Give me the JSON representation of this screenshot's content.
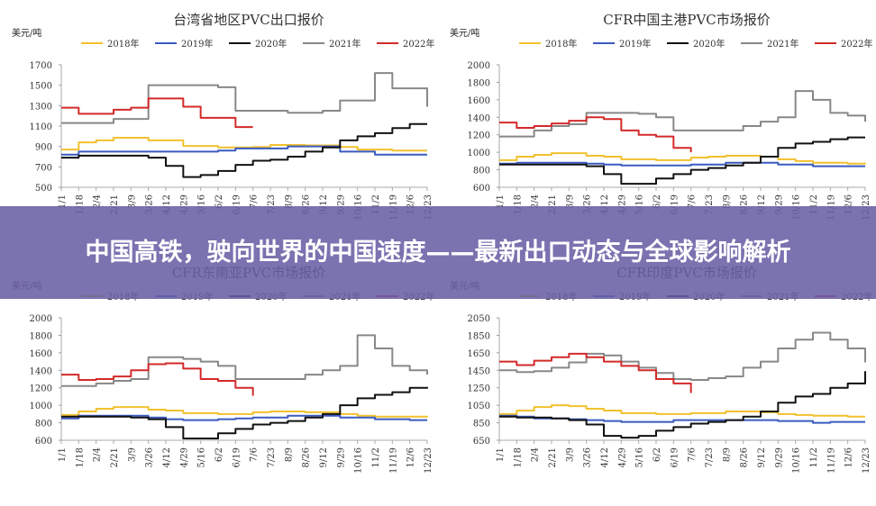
{
  "banner": {
    "title": "中国高铁，驶向世界的中国速度——最新出口动态与全球影响解析"
  },
  "colors": {
    "2018": "#f2c12e",
    "2019": "#3a5bc0",
    "2020": "#111111",
    "2021": "#888888",
    "2022": "#d42a2a",
    "banner": "#695fa5"
  },
  "chart_data": [
    {
      "type": "line",
      "title": "台湾省地区PVC出口报价",
      "unit": "美元/吨",
      "x_ticks": [
        "1/1",
        "1/18",
        "2/4",
        "2/21",
        "3/9",
        "3/26",
        "4/12",
        "4/29",
        "5/16",
        "6/2",
        "6/19",
        "7/6",
        "7/23",
        "8/9",
        "8/26",
        "9/12",
        "9/29",
        "10/16",
        "11/2",
        "11/19",
        "12/6",
        "12/23"
      ],
      "y_ticks": [
        500,
        700,
        900,
        1100,
        1300,
        1500,
        1700
      ],
      "ylim": [
        500,
        1700
      ],
      "legend": [
        "2018年",
        "2019年",
        "2020年",
        "2021年",
        "2022年"
      ],
      "series": [
        {
          "name": "2018年",
          "values": [
            870,
            940,
            960,
            985,
            985,
            960,
            960,
            905,
            905,
            890,
            890,
            895,
            915,
            915,
            910,
            910,
            895,
            870,
            870,
            860,
            860,
            860
          ]
        },
        {
          "name": "2019年",
          "values": [
            820,
            850,
            850,
            850,
            850,
            850,
            850,
            850,
            850,
            860,
            880,
            880,
            880,
            900,
            900,
            900,
            850,
            850,
            820,
            820,
            820,
            820
          ]
        },
        {
          "name": "2020年",
          "values": [
            790,
            810,
            810,
            810,
            810,
            790,
            710,
            600,
            620,
            660,
            720,
            760,
            770,
            800,
            850,
            890,
            960,
            1000,
            1030,
            1080,
            1120,
            1120
          ]
        },
        {
          "name": "2021年",
          "values": [
            1130,
            1130,
            1130,
            1170,
            1170,
            1500,
            1500,
            1500,
            1500,
            1480,
            1250,
            1250,
            1250,
            1230,
            1230,
            1250,
            1350,
            1350,
            1620,
            1470,
            1470,
            1290
          ]
        },
        {
          "name": "2022年",
          "values": [
            1280,
            1220,
            1220,
            1260,
            1280,
            1370,
            1370,
            1290,
            1180,
            1180,
            1090,
            1090
          ]
        }
      ]
    },
    {
      "type": "line",
      "title": "CFR中国主港PVC市场报价",
      "unit": "美元/吨",
      "x_ticks": [
        "1/1",
        "1/18",
        "2/4",
        "2/21",
        "3/9",
        "3/26",
        "4/12",
        "4/29",
        "5/16",
        "6/2",
        "6/19",
        "7/6",
        "7/23",
        "8/9",
        "8/26",
        "9/12",
        "9/29",
        "10/16",
        "11/2",
        "11/19",
        "12/6",
        "12/23"
      ],
      "y_ticks": [
        600,
        800,
        1000,
        1200,
        1400,
        1600,
        1800,
        2000
      ],
      "ylim": [
        600,
        2000
      ],
      "legend": [
        "2018年",
        "2019年",
        "2020年",
        "2021年",
        "2022年"
      ],
      "series": [
        {
          "name": "2018年",
          "values": [
            910,
            950,
            970,
            990,
            990,
            960,
            950,
            920,
            920,
            910,
            910,
            940,
            950,
            960,
            960,
            950,
            920,
            900,
            880,
            880,
            870,
            880
          ]
        },
        {
          "name": "2019年",
          "values": [
            870,
            880,
            880,
            880,
            880,
            870,
            860,
            850,
            850,
            850,
            850,
            860,
            860,
            880,
            880,
            880,
            860,
            860,
            840,
            840,
            840,
            840
          ]
        },
        {
          "name": "2020年",
          "values": [
            860,
            860,
            860,
            860,
            860,
            840,
            750,
            640,
            640,
            700,
            750,
            800,
            820,
            850,
            880,
            950,
            1050,
            1100,
            1120,
            1150,
            1170,
            1170
          ]
        },
        {
          "name": "2021年",
          "values": [
            1180,
            1180,
            1250,
            1300,
            1320,
            1450,
            1450,
            1450,
            1440,
            1400,
            1250,
            1250,
            1250,
            1250,
            1300,
            1350,
            1400,
            1700,
            1600,
            1450,
            1420,
            1350
          ]
        },
        {
          "name": "2022年",
          "values": [
            1340,
            1280,
            1300,
            1330,
            1360,
            1400,
            1380,
            1250,
            1200,
            1180,
            1050,
            1000
          ]
        }
      ]
    },
    {
      "type": "line",
      "title": "CFR东南亚PVC市场报价",
      "unit": "美元/吨",
      "x_ticks": [
        "1/1",
        "1/18",
        "2/4",
        "2/21",
        "3/9",
        "3/26",
        "4/12",
        "4/29",
        "5/16",
        "6/2",
        "6/19",
        "7/6",
        "7/23",
        "8/9",
        "8/26",
        "9/12",
        "9/29",
        "10/16",
        "11/2",
        "11/19",
        "12/6",
        "12/23"
      ],
      "y_ticks": [
        600,
        800,
        1000,
        1200,
        1400,
        1600,
        1800,
        2000
      ],
      "ylim": [
        600,
        2000
      ],
      "legend": [
        "2018年",
        "2019年",
        "2020年",
        "2021年",
        "2022年"
      ],
      "series": [
        {
          "name": "2018年",
          "values": [
            890,
            930,
            960,
            980,
            980,
            950,
            940,
            910,
            910,
            900,
            900,
            920,
            930,
            930,
            920,
            920,
            900,
            880,
            870,
            870,
            870,
            880
          ]
        },
        {
          "name": "2019年",
          "values": [
            850,
            880,
            880,
            880,
            880,
            860,
            840,
            830,
            830,
            840,
            850,
            860,
            860,
            880,
            880,
            880,
            860,
            860,
            840,
            840,
            830,
            830
          ]
        },
        {
          "name": "2020年",
          "values": [
            870,
            870,
            870,
            870,
            860,
            840,
            750,
            620,
            620,
            680,
            730,
            780,
            800,
            820,
            860,
            900,
            1000,
            1080,
            1120,
            1150,
            1200,
            1210
          ]
        },
        {
          "name": "2021年",
          "values": [
            1220,
            1220,
            1250,
            1280,
            1300,
            1550,
            1550,
            1530,
            1500,
            1450,
            1300,
            1300,
            1300,
            1300,
            1350,
            1400,
            1450,
            1800,
            1650,
            1450,
            1400,
            1350
          ]
        },
        {
          "name": "2022年",
          "values": [
            1350,
            1290,
            1300,
            1330,
            1400,
            1470,
            1480,
            1420,
            1300,
            1280,
            1200,
            1110
          ]
        }
      ]
    },
    {
      "type": "line",
      "title": "CFR印度PVC市场报价",
      "unit": "美元/吨",
      "x_ticks": [
        "1/1",
        "1/18",
        "2/4",
        "2/21",
        "3/9",
        "3/26",
        "4/12",
        "4/29",
        "5/16",
        "6/2",
        "6/19",
        "7/6",
        "7/23",
        "8/9",
        "8/26",
        "9/12",
        "9/29",
        "10/16",
        "11/2",
        "11/19",
        "12/6",
        "12/23"
      ],
      "y_ticks": [
        650,
        850,
        1050,
        1250,
        1450,
        1650,
        1850,
        2050
      ],
      "ylim": [
        650,
        2050
      ],
      "legend": [
        "2018年",
        "2019年",
        "2020年",
        "2021年",
        "2022年"
      ],
      "series": [
        {
          "name": "2018年",
          "values": [
            950,
            990,
            1030,
            1050,
            1040,
            1010,
            990,
            960,
            960,
            950,
            950,
            960,
            960,
            980,
            980,
            970,
            950,
            940,
            930,
            930,
            920,
            920
          ]
        },
        {
          "name": "2019年",
          "values": [
            930,
            920,
            900,
            900,
            890,
            880,
            870,
            860,
            860,
            860,
            880,
            880,
            880,
            880,
            880,
            880,
            870,
            870,
            850,
            860,
            860,
            860
          ]
        },
        {
          "name": "2020年",
          "values": [
            920,
            910,
            910,
            900,
            880,
            830,
            700,
            680,
            700,
            760,
            800,
            840,
            860,
            880,
            920,
            980,
            1080,
            1150,
            1180,
            1250,
            1300,
            1440
          ]
        },
        {
          "name": "2021年",
          "values": [
            1450,
            1430,
            1440,
            1480,
            1540,
            1640,
            1620,
            1550,
            1480,
            1420,
            1350,
            1340,
            1360,
            1380,
            1480,
            1550,
            1700,
            1800,
            1880,
            1800,
            1700,
            1540
          ]
        },
        {
          "name": "2022年",
          "values": [
            1550,
            1510,
            1560,
            1600,
            1640,
            1600,
            1550,
            1500,
            1450,
            1350,
            1300,
            1190
          ]
        }
      ]
    }
  ]
}
